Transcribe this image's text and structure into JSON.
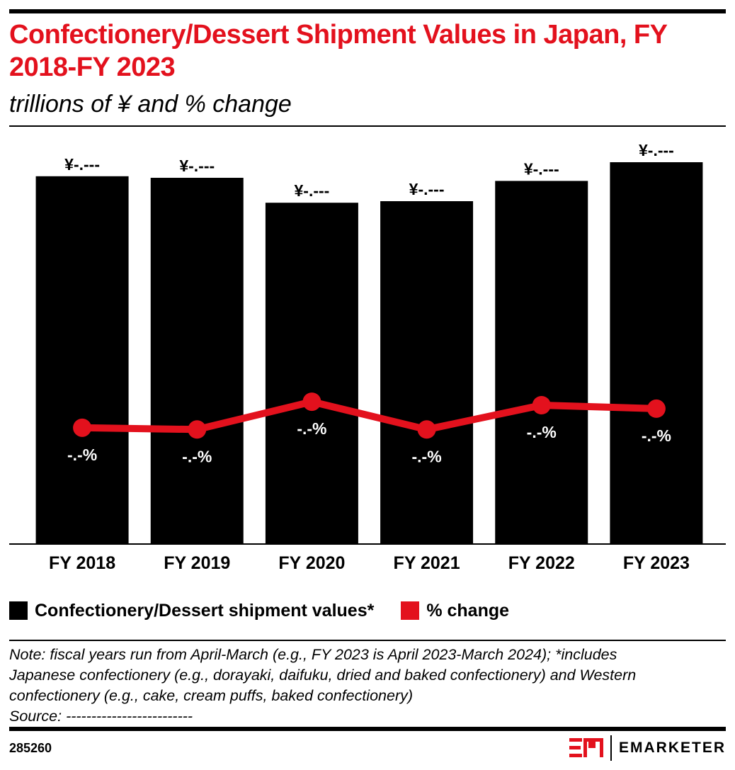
{
  "title": "Confectionery/Dessert Shipment Values in Japan, FY 2018-FY 2023",
  "subtitle": "trillions of ¥ and % change",
  "chart_data": {
    "type": "bar",
    "categories": [
      "FY 2018",
      "FY 2019",
      "FY 2020",
      "FY 2021",
      "FY 2022",
      "FY 2023"
    ],
    "series": [
      {
        "name": "Confectionery/Dessert shipment values*",
        "type": "bar",
        "color": "#000000",
        "values": [
          2.36,
          2.35,
          2.19,
          2.2,
          2.33,
          2.45
        ],
        "labels": [
          "¥-.---",
          "¥-.---",
          "¥-.---",
          "¥-.---",
          "¥-.---",
          "¥-.---"
        ]
      },
      {
        "name": "% change",
        "type": "line",
        "color": "#e3111d",
        "values": [
          -0.3,
          -0.4,
          1.2,
          -0.4,
          1.0,
          0.8
        ],
        "labels": [
          "-.-%",
          "-.-%",
          "-.-%",
          "-.-%",
          "-.-%",
          "-.-%"
        ]
      }
    ],
    "ylim": [
      0,
      2.6
    ],
    "y2lim": [
      -7,
      17
    ],
    "grid": false,
    "legend_position": "bottom-left"
  },
  "legend": {
    "bar_label": "Confectionery/Dessert shipment values*",
    "line_label": "% change",
    "bar_color": "#000000",
    "line_color": "#e3111d"
  },
  "note": [
    "Note: fiscal years run from April-March (e.g., FY 2023 is April 2023-March 2024); *includes",
    "Japanese confectionery (e.g., dorayaki, daifuku, dried and baked confectionery) and Western",
    "confectionery (e.g., cake, cream puffs, baked confectionery)",
    "Source: -------------------------"
  ],
  "footer": {
    "chart_id": "285260",
    "brand": "EMARKETER",
    "brand_color": "#e3111d"
  }
}
